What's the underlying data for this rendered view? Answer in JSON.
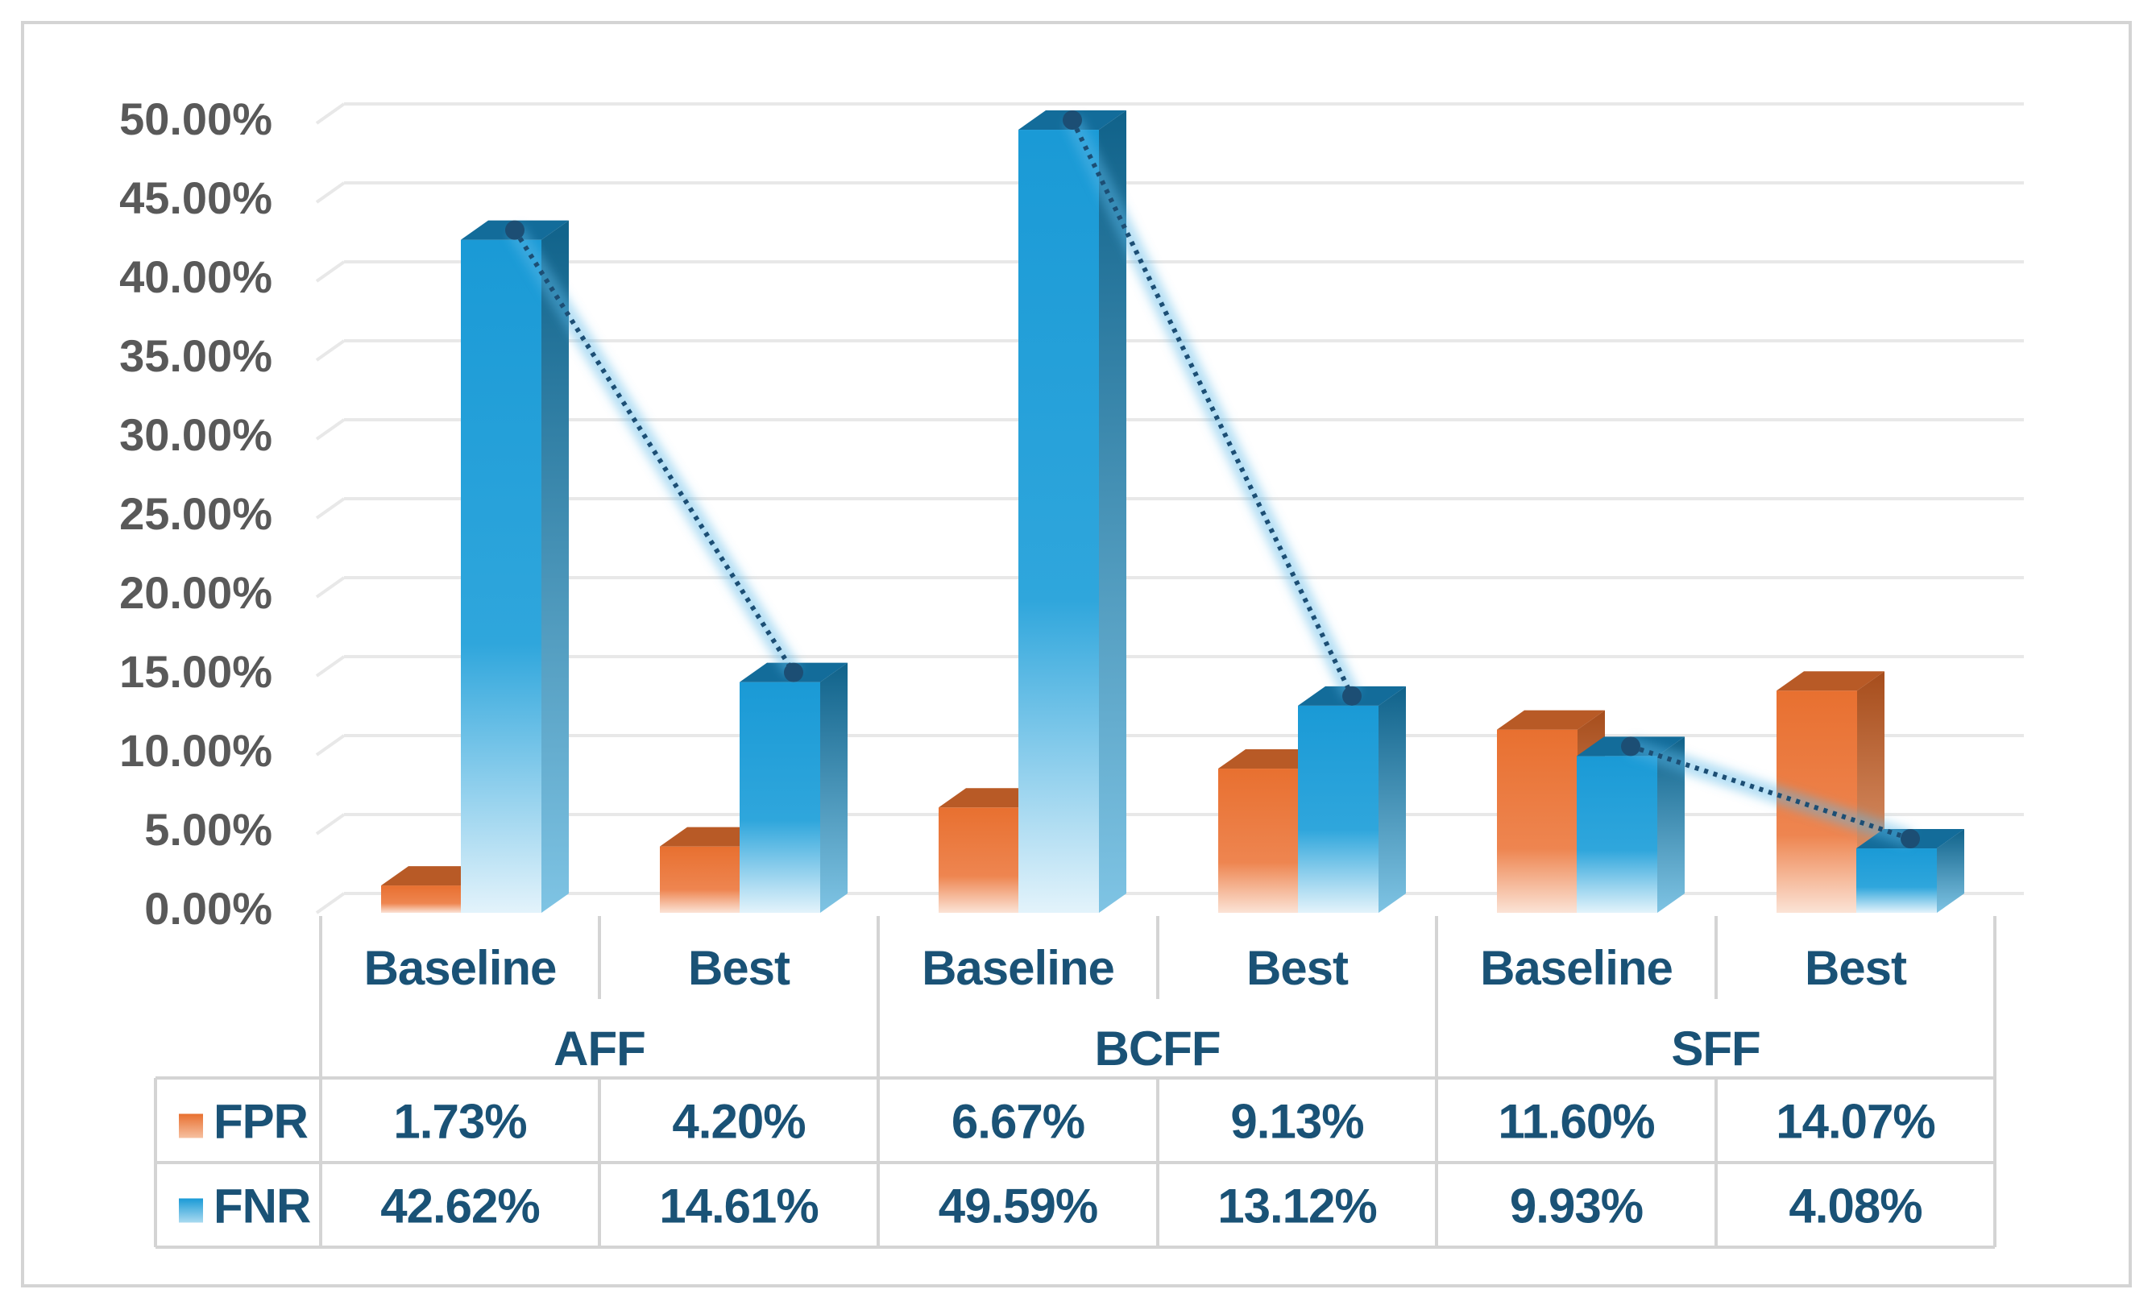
{
  "chart_data": {
    "type": "bar",
    "style": "3d-clustered-column-with-data-table",
    "groups": [
      "AFF",
      "BCFF",
      "SFF"
    ],
    "categories": [
      "Baseline",
      "Best",
      "Baseline",
      "Best",
      "Baseline",
      "Best"
    ],
    "series": [
      {
        "name": "FPR",
        "values": [
          1.73,
          4.2,
          6.67,
          9.13,
          11.6,
          14.07
        ],
        "labels": [
          "1.73%",
          "4.20%",
          "6.67%",
          "9.13%",
          "11.60%",
          "14.07%"
        ],
        "color": "#E87030"
      },
      {
        "name": "FNR",
        "values": [
          42.62,
          14.61,
          49.59,
          13.12,
          9.93,
          4.08
        ],
        "labels": [
          "42.62%",
          "14.61%",
          "49.59%",
          "13.12%",
          "9.93%",
          "4.08%"
        ],
        "color": "#1A9AD6"
      }
    ],
    "trendline": {
      "series": "FNR",
      "style": "dotted",
      "pairs": [
        [
          0,
          1
        ],
        [
          2,
          3
        ],
        [
          4,
          5
        ]
      ]
    },
    "ylim": [
      0,
      50
    ],
    "yticks": [
      "0.00%",
      "5.00%",
      "10.00%",
      "15.00%",
      "20.00%",
      "25.00%",
      "30.00%",
      "35.00%",
      "40.00%",
      "45.00%",
      "50.00%"
    ],
    "ytick_values": [
      0,
      5,
      10,
      15,
      20,
      25,
      30,
      35,
      40,
      45,
      50
    ],
    "title": "",
    "xlabel": "",
    "ylabel": "",
    "grid": true,
    "legend": "data-table-keys",
    "colors": {
      "text": "#1A5276",
      "axis_text": "#595959",
      "grid": "#E8E8E8",
      "table_border": "#D4D4D4"
    }
  }
}
